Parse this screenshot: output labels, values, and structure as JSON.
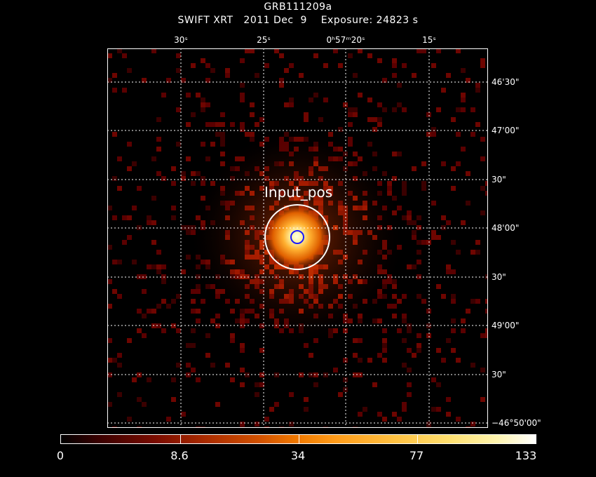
{
  "header": {
    "object": "GRB111209a",
    "subtitle": "SWIFT XRT   2011 Dec  9    Exposure: 24823 s"
  },
  "axes": {
    "ra_ticks": [
      "30ˢ",
      "25ˢ",
      "0ʰ57ᵐ20ˢ",
      "15ˢ"
    ],
    "dec_ticks": [
      "46'30\"",
      "47'00\"",
      "30\"",
      "48'00\"",
      "30\"",
      "49'00\"",
      "30\"",
      "−46°50'00\""
    ]
  },
  "region": {
    "label": "Input_pos",
    "outer_circle_color": "#ffffff",
    "inner_circle_color": "#1a1aff"
  },
  "colorbar": {
    "labels": [
      "0",
      "8.6",
      "34",
      "77",
      "133"
    ]
  },
  "colors": {
    "background": "#000000",
    "grid": "#ffffff",
    "pixel_low": "#5a0000",
    "pixel_mid": "#a81800",
    "source_core": "#fff1a0"
  }
}
